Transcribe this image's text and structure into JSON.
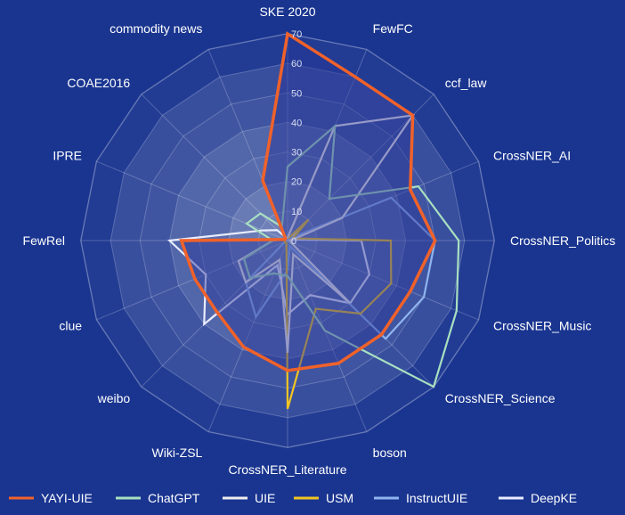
{
  "chart_data": {
    "type": "radar",
    "title": "",
    "categories": [
      "SKE 2020",
      "FewFC",
      "ccf_law",
      "CrossNER_AI",
      "CrossNER_Politics",
      "CrossNER_Music",
      "CrossNER_Science",
      "boson",
      "CrossNER_Literature",
      "Wiki-ZSL",
      "weibo",
      "clue",
      "FewRel",
      "IPRE",
      "COAE2016",
      "commodity news"
    ],
    "rlim": [
      0,
      70
    ],
    "ticks": [
      0,
      10,
      20,
      30,
      40,
      50,
      60,
      70
    ],
    "grid": true,
    "legend_position": "bottom",
    "series": [
      {
        "name": "YAYI-UIE",
        "color": "#f0622a",
        "values": [
          70,
          60,
          60,
          45,
          50,
          45,
          45,
          45,
          44,
          39,
          34,
          34,
          36,
          1,
          1,
          22
        ]
      },
      {
        "name": "ChatGPT",
        "color": "#a8e0c0",
        "values": [
          25,
          42,
          20,
          48,
          58,
          62,
          70,
          33,
          12,
          12,
          18,
          16,
          5,
          15,
          13,
          5
        ]
      },
      {
        "name": "UIE",
        "color": "#f0eeee",
        "values": [
          1,
          42,
          60,
          20,
          1,
          1,
          30,
          5,
          38,
          7,
          20,
          18,
          5,
          1,
          1,
          1
        ]
      },
      {
        "name": "USM",
        "color": "#f2c521",
        "values": [
          1,
          1,
          10,
          2,
          35,
          38,
          35,
          25,
          57,
          1,
          1,
          1,
          1,
          1,
          1,
          1
        ]
      },
      {
        "name": "InstructUIE",
        "color": "#8fb4ee",
        "values": [
          1,
          1,
          1,
          38,
          50,
          50,
          47,
          2,
          10,
          28,
          20,
          1,
          1,
          1,
          1,
          1
        ]
      },
      {
        "name": "DeepKE",
        "color": "#e8ecff",
        "values": [
          1,
          1,
          10,
          1,
          25,
          30,
          30,
          20,
          25,
          9,
          40,
          30,
          40,
          9,
          5,
          1
        ]
      }
    ]
  }
}
